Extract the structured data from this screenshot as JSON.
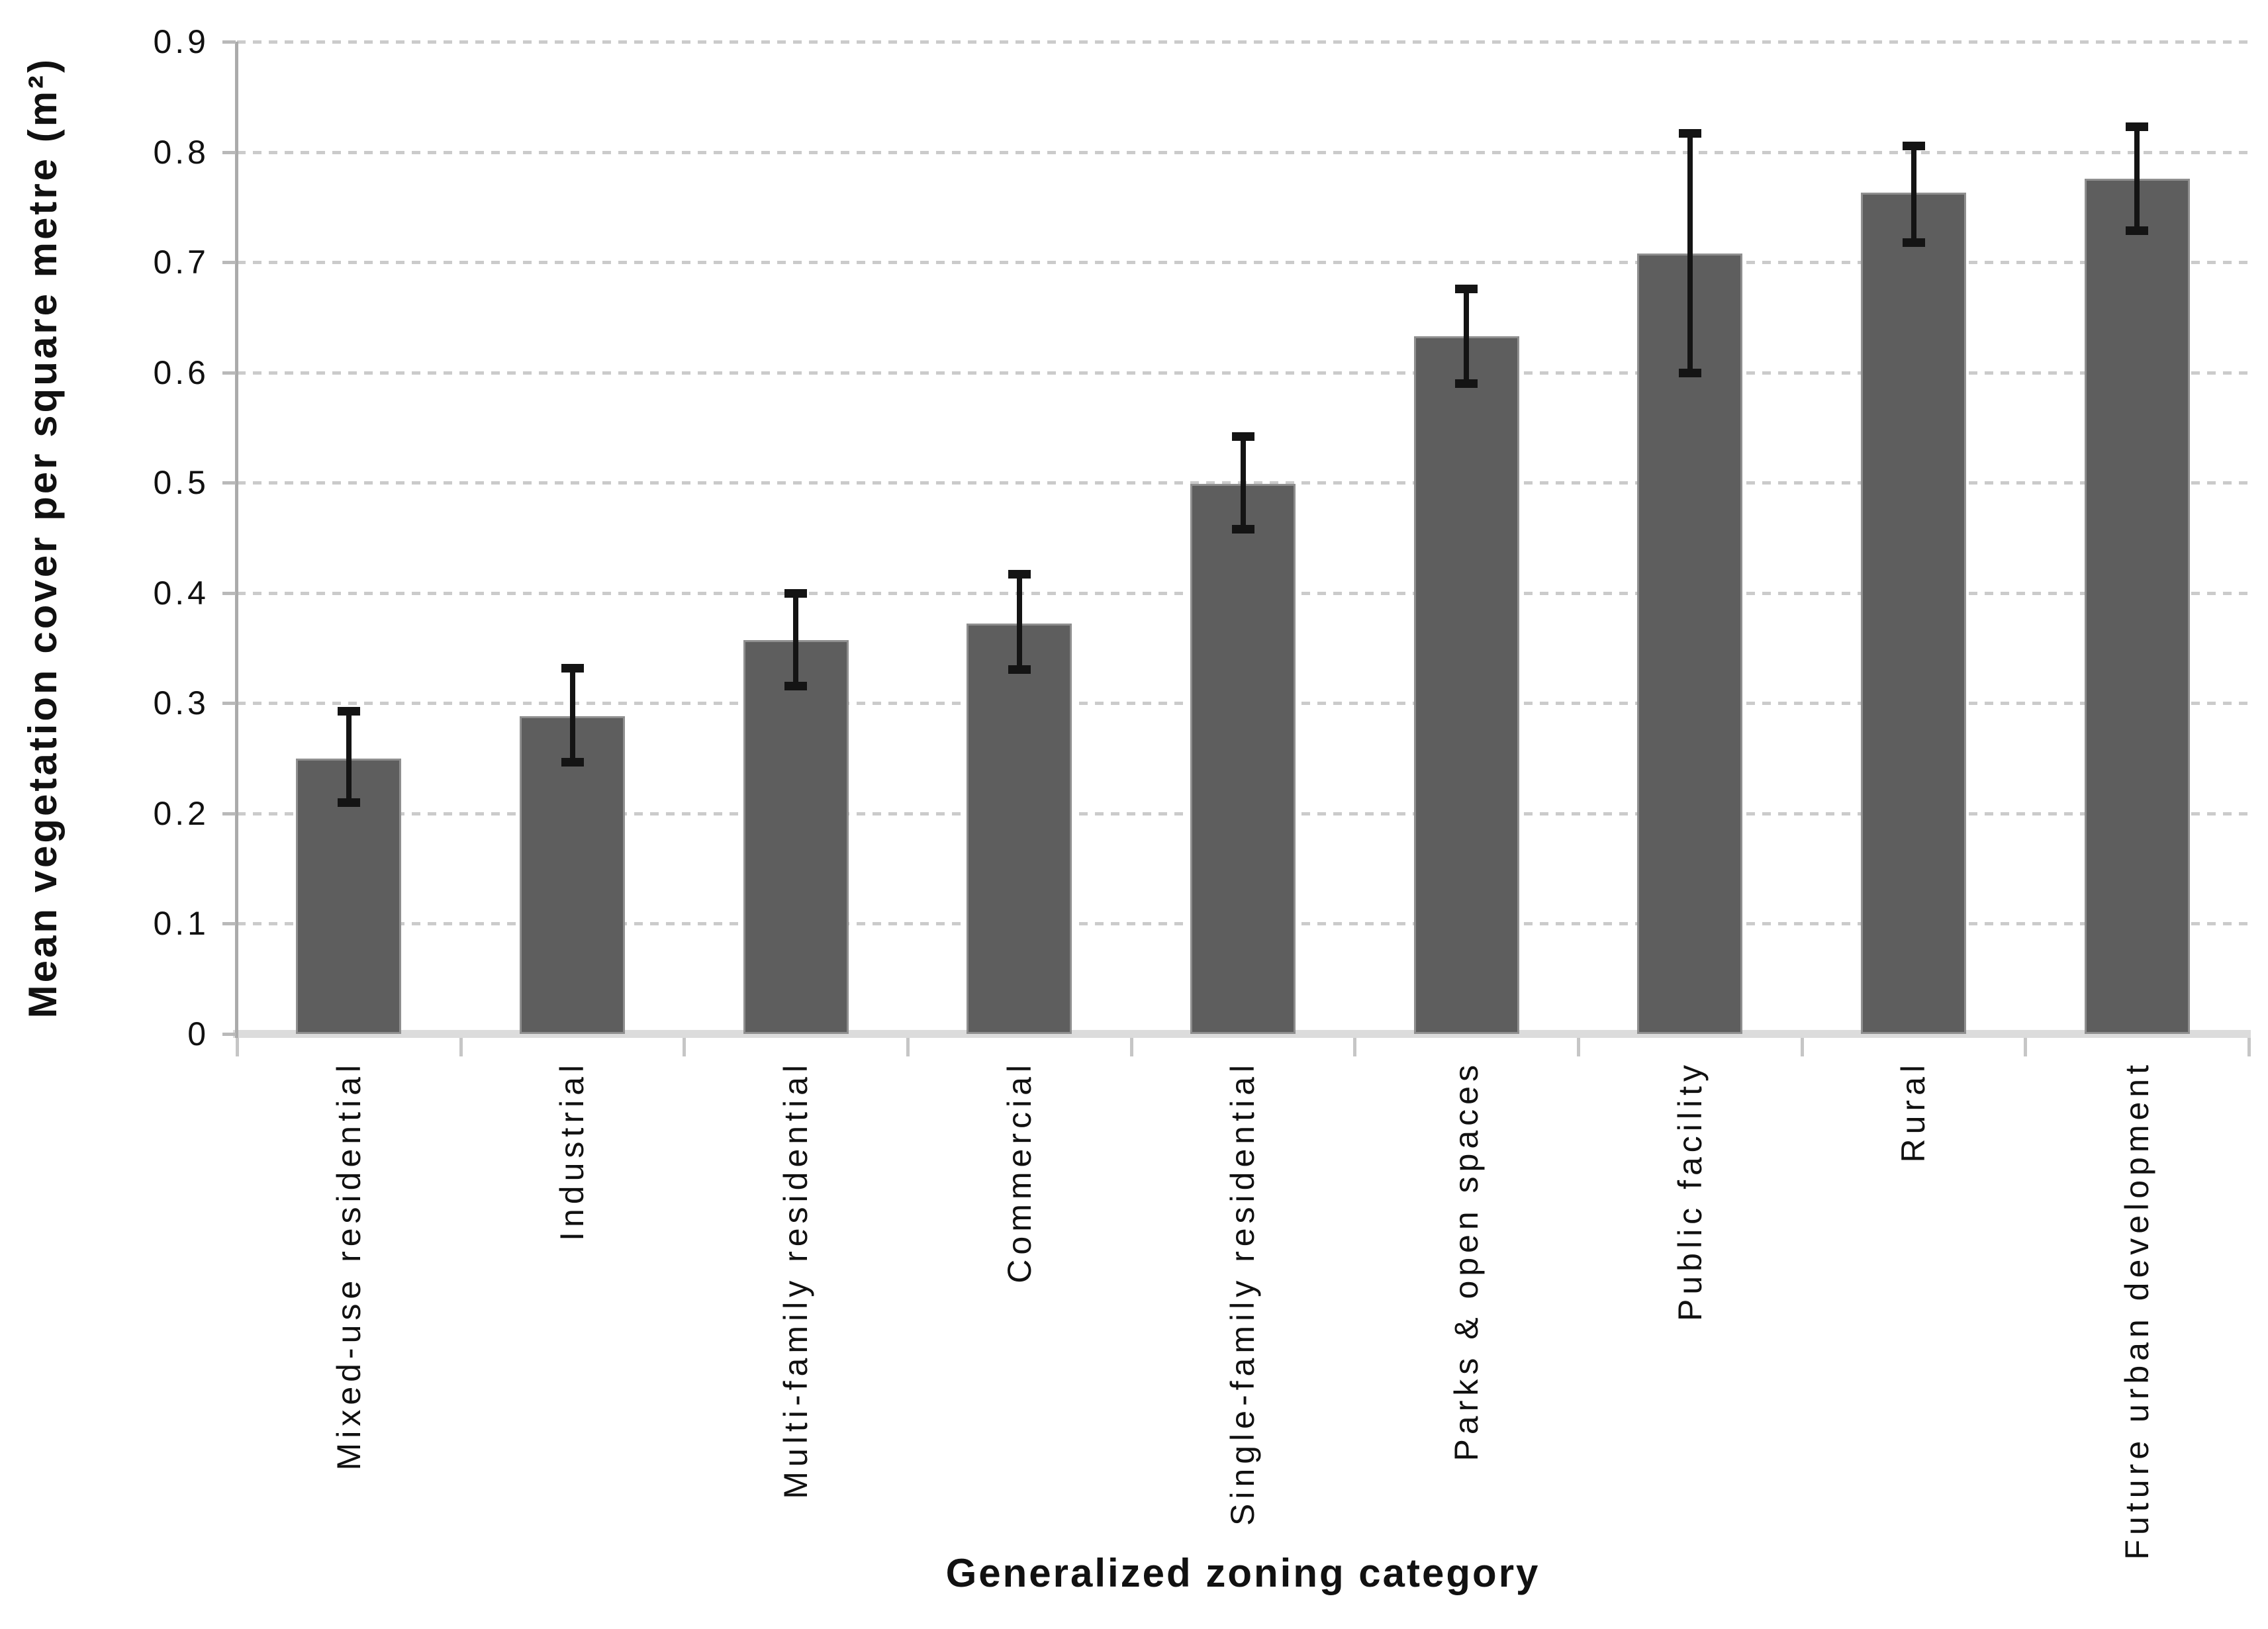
{
  "chart_data": {
    "type": "bar",
    "xlabel": "Generalized zoning category",
    "ylabel": "Mean vegetation cover per square metre (m²)",
    "categories": [
      "Mixed-use residential",
      "Industrial",
      "Multi-family residential",
      "Commercial",
      "Single-family residential",
      "Parks & open spaces",
      "Public facility",
      "Rural",
      "Future urban development"
    ],
    "series": [
      {
        "name": "Mean vegetation cover per square metre",
        "values": [
          0.25,
          0.288,
          0.357,
          0.372,
          0.499,
          0.633,
          0.708,
          0.763,
          0.776
        ],
        "error_low": [
          0.21,
          0.247,
          0.316,
          0.331,
          0.458,
          0.59,
          0.6,
          0.718,
          0.729
        ],
        "error_high": [
          0.293,
          0.332,
          0.4,
          0.417,
          0.542,
          0.676,
          0.817,
          0.806,
          0.823
        ]
      }
    ],
    "ylim": [
      0,
      0.9
    ],
    "ytick_labels": [
      "0",
      "0.1",
      "0.2",
      "0.3",
      "0.4",
      "0.5",
      "0.6",
      "0.7",
      "0.8",
      "0.9"
    ],
    "grid": "horizontal-dashed",
    "legend_position": "none",
    "bar_width_fraction": 0.47,
    "colors": {
      "bar": "#5e5e5e",
      "bar_edge": "#8f8f8f",
      "error_bar": "#141414",
      "gridline": "#cbcbcb",
      "x_axis_line": "#dcdcdc",
      "y_axis_line": "#ababab",
      "text": "#111111"
    }
  }
}
